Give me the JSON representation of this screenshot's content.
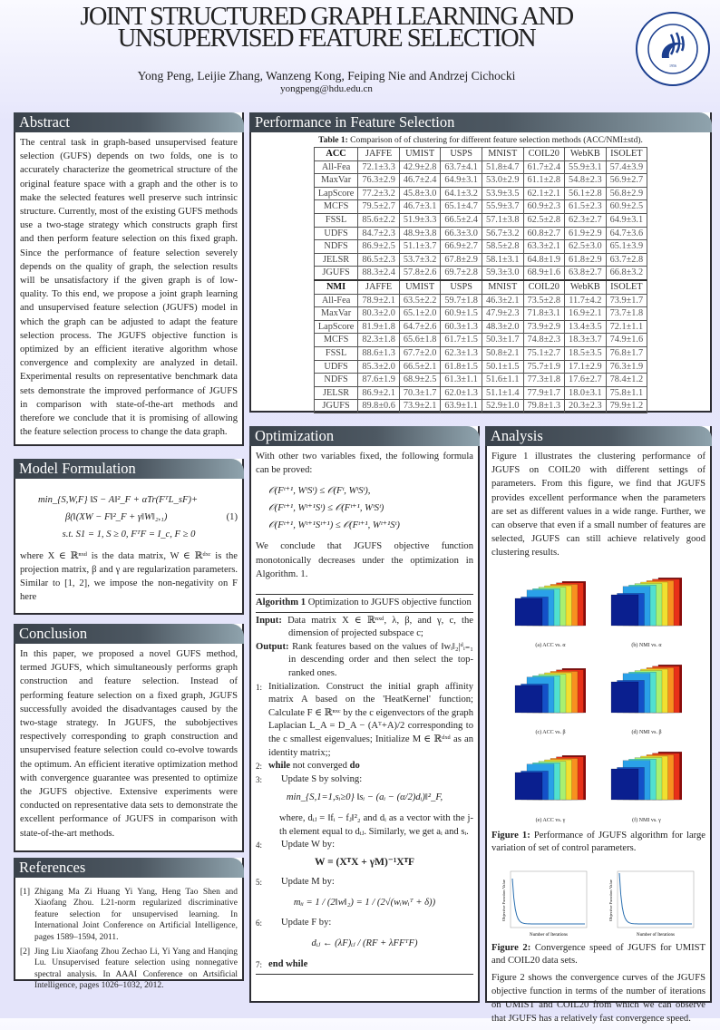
{
  "header": {
    "title_line1": "JOINT STRUCTURED GRAPH LEARNING AND",
    "title_line2": "UNSUPERVISED FEATURE SELECTION",
    "authors": "Yong Peng, Leijie Zhang, Wanzeng Kong, Feiping Nie and Andrzej Cichocki",
    "email": "yongpeng@hdu.edu.cn",
    "logo_text": "HANGZHOU DIANZI UNIVERSITY",
    "logo_year": "1956"
  },
  "abstract": {
    "title": "Abstract",
    "text": "The central task in graph-based unsupervised feature selection (GUFS) depends on two folds, one is to accurately characterize the geometrical structure of the original feature space with a graph and the other is to make the selected features well preserve such intrinsic structure. Currently, most of the existing GUFS methods use a two-stage strategy which constructs graph first and then perform feature selection on this fixed graph. Since the performance of feature selection severely depends on the quality of graph, the selection results will be unsatisfactory if the given graph is of low-quality. To this end, we propose a joint graph learning and unsupervised feature selection (JGUFS) model in which the graph can be adjusted to adapt the feature selection process. The JGUFS objective function is optimized by an efficient iterative algorithm whose convergence and complexity are analyzed in detail. Experimental results on representative benchmark data sets demonstrate the improved performance of JGUFS in comparison with state-of-the-art methods and therefore we conclude that it is promising of allowing the feature selection process to change the data graph."
  },
  "model": {
    "title": "Model Formulation",
    "eq1": "min_{S,W,F} ‖S − A‖²_F + αTr(FᵀL_sF)+",
    "eq2": "β(‖(XW − F‖²_F + γ‖W‖₂,₁)",
    "eq_num": "(1)",
    "eq3": "s.t. S1 = 1, S ≥ 0, FᵀF = I_c, F ≥ 0",
    "text": "where X ∈ ℝⁿˣᵈ is the data matrix, W ∈ ℝᵈˣᶜ is the projection matrix, β and γ are regularization parameters. Similar to [1, 2], we impose the non-negativity on F here"
  },
  "conclusion": {
    "title": "Conclusion",
    "text": "In this paper, we proposed a novel GUFS method, termed JGUFS, which simultaneously performs graph construction and feature selection. Instead of performing feature selection on a fixed graph, JGUFS successfully avoided the disadvantages caused by the two-stage strategy. In JGUFS, the subobjectives respectively corresponding to graph construction and unsupervised feature selection could co-evolve towards the optimum. An efficient iterative optimization method with convergence guarantee was presented to optimize the JGUFS objective. Extensive experiments were conducted on representative data sets to demonstrate the excellent performance of JGUFS in comparison with state-of-the-art methods."
  },
  "references": {
    "title": "References",
    "items": [
      {
        "num": "[1]",
        "text": "Zhigang Ma Zi Huang Yi Yang, Heng Tao Shen and Xiaofang Zhou. L21-norm regularized discriminative feature selection for unsupervised learning. In International Joint Conference on Artificial Intelligence, pages 1589–1594, 2011."
      },
      {
        "num": "[2]",
        "text": "Jing Liu Xiaofang Zhou Zechao Li, Yi Yang and Hanqing Lu. Unsupervised feature selection using nonnegative spectral analysis. In AAAI Conference on Artsificial Intelligence, pages 1026–1032, 2012."
      }
    ]
  },
  "performance": {
    "title": "Performance in Feature Selection",
    "caption_label": "Table 1:",
    "caption": "Comparison of of clustering for different feature selection methods (ACC/NMI±std).",
    "columns": [
      "JAFFE",
      "UMIST",
      "USPS",
      "MNIST",
      "COIL20",
      "WebKB",
      "ISOLET"
    ],
    "blocks": [
      {
        "metric": "ACC",
        "rows": [
          [
            "All-Fea",
            "72.1±3.3",
            "42.9±2.8",
            "63.7±4.1",
            "51.8±4.7",
            "61.7±2.4",
            "55.9±3.1",
            "57.4±3.9"
          ],
          [
            "MaxVar",
            "76.3±2.9",
            "46.7±2.4",
            "64.9±3.1",
            "53.0±2.9",
            "61.1±2.8",
            "54.8±2.3",
            "56.9±2.7"
          ],
          [
            "LapScore",
            "77.2±3.2",
            "45.8±3.0",
            "64.1±3.2",
            "53.9±3.5",
            "62.1±2.1",
            "56.1±2.8",
            "56.8±2.9"
          ],
          [
            "MCFS",
            "79.5±2.7",
            "46.7±3.1",
            "65.1±4.7",
            "55.9±3.7",
            "60.9±2.3",
            "61.5±2.3",
            "60.9±2.5"
          ],
          [
            "FSSL",
            "85.6±2.2",
            "51.9±3.3",
            "66.5±2.4",
            "57.1±3.8",
            "62.5±2.8",
            "62.3±2.7",
            "64.9±3.1"
          ],
          [
            "UDFS",
            "84.7±2.3",
            "48.9±3.8",
            "66.3±3.0",
            "56.7±3.2",
            "60.8±2.7",
            "61.9±2.9",
            "64.7±3.6"
          ],
          [
            "NDFS",
            "86.9±2.5",
            "51.1±3.7",
            "66.9±2.7",
            "58.5±2.8",
            "63.3±2.1",
            "62.5±3.0",
            "65.1±3.9"
          ],
          [
            "JELSR",
            "86.5±2.3",
            "53.7±3.2",
            "67.8±2.9",
            "58.1±3.1",
            "64.8±1.9",
            "61.8±2.9",
            "63.7±2.8"
          ],
          [
            "JGUFS",
            "88.3±2.4",
            "57.8±2.6",
            "69.7±2.8",
            "59.3±3.0",
            "68.9±1.6",
            "63.8±2.7",
            "66.8±3.2"
          ]
        ]
      },
      {
        "metric": "NMI",
        "rows": [
          [
            "All-Fea",
            "78.9±2.1",
            "63.5±2.2",
            "59.7±1.8",
            "46.3±2.1",
            "73.5±2.8",
            "11.7±4.2",
            "73.9±1.7"
          ],
          [
            "MaxVar",
            "80.3±2.0",
            "65.1±2.0",
            "60.9±1.5",
            "47.9±2.3",
            "71.8±3.1",
            "16.9±2.1",
            "73.7±1.8"
          ],
          [
            "LapScore",
            "81.9±1.8",
            "64.7±2.6",
            "60.3±1.3",
            "48.3±2.0",
            "73.9±2.9",
            "13.4±3.5",
            "72.1±1.1"
          ],
          [
            "MCFS",
            "82.3±1.8",
            "65.6±1.8",
            "61.7±1.5",
            "50.3±1.7",
            "74.8±2.3",
            "18.3±3.7",
            "74.9±1.6"
          ],
          [
            "FSSL",
            "88.6±1.3",
            "67.7±2.0",
            "62.3±1.3",
            "50.8±2.1",
            "75.1±2.7",
            "18.5±3.5",
            "76.8±1.7"
          ],
          [
            "UDFS",
            "85.3±2.0",
            "66.5±2.1",
            "61.8±1.5",
            "50.1±1.5",
            "75.7±1.9",
            "17.1±2.9",
            "76.3±1.9"
          ],
          [
            "NDFS",
            "87.6±1.9",
            "68.9±2.5",
            "61.3±1.1",
            "51.6±1.1",
            "77.3±1.8",
            "17.6±2.7",
            "78.4±1.2"
          ],
          [
            "JELSR",
            "86.9±2.1",
            "70.3±1.7",
            "62.0±1.3",
            "51.1±1.4",
            "77.9±1.7",
            "18.0±3.1",
            "75.8±1.1"
          ],
          [
            "JGUFS",
            "89.8±0.6",
            "73.9±2.1",
            "63.9±1.1",
            "52.9±1.0",
            "79.8±1.3",
            "20.3±2.3",
            "79.9±1.2"
          ]
        ]
      }
    ]
  },
  "optimization": {
    "title": "Optimization",
    "intro": "With other two variables fixed, the following formula can be proved:",
    "ineqs": [
      "𝒪(Fᵗ⁺¹, WᵗSᵗ) ≤ 𝒪(Fᵗ, WᵗSᵗ),",
      "𝒪(Fᵗ⁺¹, Wᵗ⁺¹Sᵗ) ≤ 𝒪(Fᵗ⁺¹, WᵗSᵗ)",
      "𝒪(Fᵗ⁺¹, Wᵗ⁺¹Sᵗ⁺¹) ≤ 𝒪(Fᵗ⁺¹, Wᵗ⁺¹Sᵗ)"
    ],
    "conclusion": "We conclude that JGUFS objective function monotonically decreases under the optimization in Algorithm. 1.",
    "algorithm": {
      "label": "Algorithm 1",
      "title": "Optimization to JGUFS objective function",
      "input_label": "Input:",
      "input": "Data matrix X ∈ ℝⁿˣᵈ, λ, β, and γ, c, the dimension of projected subspace c;",
      "output_label": "Output:",
      "output": "Rank features based on the values of ‖wᵢ‖₂|ᵈᵢ₌₁ in descending order and then select the top-ranked ones.",
      "step1": "Initialization. Construct the initial graph affinity matrix A based on the 'HeatKernel' function; Calculate F ∈ ℝⁿˣᶜ by the c eigenvectors of the graph Laplacian L_A = D_A − (Aᵀ+A)/2 corresponding to the c smallest eigenvalues; Initialize M ∈ ℝᵈˣᵈ as an identity matrix;;",
      "step2_kw1": "while",
      "step2": "not converged",
      "step2_kw2": "do",
      "step3": "Update S by solving:",
      "step3_eq": "min_{S,1=1,sᵢ≥0} ‖sᵢ − (aᵢ − (α/2)dᵢ)‖²_F,",
      "step3_text": "where, dᵢⱼ = ‖fᵢ − fⱼ‖²₂ and dᵢ as a vector with the j-th element equal to dᵢⱼ. Similarly, we get aᵢ and sᵢ.",
      "step4": "Update W by:",
      "step4_eq": "W = (XᵀX + γM)⁻¹XᵀF",
      "step5": "Update M by:",
      "step5_eq": "mᵢᵢ = 1 / (2‖w‖₂) = 1 / (2√(wᵢwᵢᵀ + δ))",
      "step6": "Update F by:",
      "step6_eq": "dᵢⱼ ← (λF)ᵢⱼ / (RF + λFFᵀF)",
      "step7": "end while"
    }
  },
  "analysis": {
    "title": "Analysis",
    "text1": "Figure 1 illustrates the clustering performance of JGUFS on COIL20 with different settings of parameters. From this figure, we find that JGUFS provides excellent performance when the parameters are set as different values in a wide range. Further, we can observe that even if a small number of features are selected, JGUFS can still achieve relatively good clustering results.",
    "fig1_subcaptions": [
      "(a) ACC vs. α",
      "(b) NMI vs. α",
      "(c) ACC vs. β",
      "(d) NMI vs. β",
      "(e) ACC vs. γ",
      "(f) NMI vs. γ"
    ],
    "fig1_label": "Figure 1:",
    "fig1_caption": "Performance of JGUFS algorithm for large variation of set of control parameters.",
    "fig2_label": "Figure 2:",
    "fig2_caption": "Convergence speed of JGUFS for UMIST and COIL20 data sets.",
    "fig2_xlabel": "Number of Iterations",
    "fig2_ylabel": "Objective Function Value",
    "text2": "Figure 2 shows the convergence curves of the JGUFS objective function in terms of the number of iterations on UMIST and COIL20 from which we can observe that JGUFS has a relatively fast convergence speed.",
    "bar_colors": [
      "#0a1f8f",
      "#1450c8",
      "#2aa0e8",
      "#50e0d0",
      "#a8f070",
      "#f0e030",
      "#f89020",
      "#e83018",
      "#8a0a0a"
    ]
  }
}
